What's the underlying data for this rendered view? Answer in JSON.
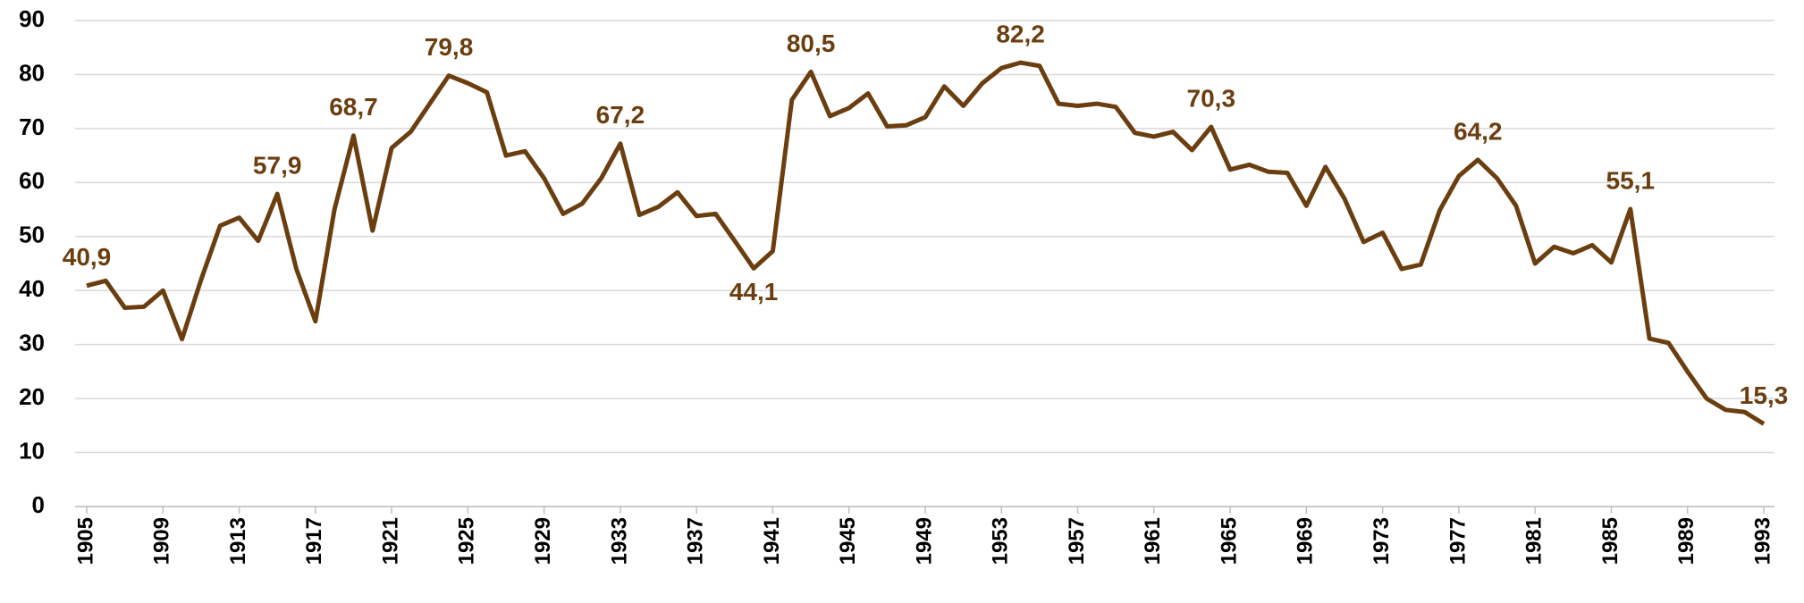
{
  "chart_data": {
    "type": "line",
    "x": [
      1905,
      1906,
      1907,
      1908,
      1909,
      1910,
      1911,
      1912,
      1913,
      1914,
      1915,
      1916,
      1917,
      1918,
      1919,
      1920,
      1921,
      1922,
      1923,
      1924,
      1925,
      1926,
      1927,
      1928,
      1929,
      1930,
      1931,
      1932,
      1933,
      1934,
      1935,
      1936,
      1937,
      1938,
      1939,
      1940,
      1941,
      1942,
      1943,
      1944,
      1945,
      1946,
      1947,
      1948,
      1949,
      1950,
      1951,
      1952,
      1953,
      1954,
      1955,
      1956,
      1957,
      1958,
      1959,
      1960,
      1961,
      1962,
      1963,
      1964,
      1965,
      1966,
      1967,
      1968,
      1969,
      1970,
      1971,
      1972,
      1973,
      1974,
      1975,
      1976,
      1977,
      1978,
      1979,
      1980,
      1981,
      1982,
      1983,
      1984,
      1985,
      1986,
      1987,
      1988,
      1989,
      1990,
      1991,
      1992,
      1993
    ],
    "series": [
      {
        "color": "#6b3e0f",
        "values": [
          40.9,
          41.8,
          36.8,
          37,
          40,
          31,
          42,
          52,
          53.5,
          49.2,
          57.9,
          44,
          34.3,
          55,
          68.7,
          51.1,
          66.4,
          69.4,
          74.6,
          79.8,
          78.4,
          76.7,
          65,
          65.8,
          60.8,
          54.2,
          56.1,
          60.8,
          67.2,
          54,
          55.5,
          58.2,
          53.8,
          54.2,
          49.2,
          44.1,
          47.3,
          75.3,
          80.5,
          72.3,
          73.8,
          76.5,
          70.4,
          70.6,
          72.1,
          77.8,
          74.2,
          78.4,
          81.2,
          82.2,
          81.6,
          74.6,
          74.2,
          74.6,
          74,
          69.2,
          68.5,
          69.4,
          66,
          70.3,
          62.4,
          63.3,
          62,
          61.8,
          55.7,
          62.9,
          57,
          49,
          50.7,
          44,
          44.8,
          54.9,
          61.2,
          64.2,
          60.8,
          55.7,
          45,
          48.1,
          46.9,
          48.4,
          45.2,
          55.1,
          31.1,
          30.3,
          25,
          20,
          17.9,
          17.5,
          15.3
        ],
        "value_labels": [
          "40,9",
          null,
          null,
          null,
          null,
          null,
          null,
          null,
          null,
          null,
          "57,9",
          null,
          null,
          null,
          "68,7",
          null,
          null,
          null,
          null,
          "79,8",
          null,
          null,
          null,
          null,
          null,
          null,
          null,
          null,
          "67,2",
          null,
          null,
          null,
          null,
          null,
          null,
          "44,1",
          null,
          null,
          "80,5",
          null,
          null,
          null,
          null,
          null,
          null,
          null,
          null,
          null,
          null,
          "82,2",
          null,
          null,
          null,
          null,
          null,
          null,
          null,
          null,
          null,
          "70,3",
          null,
          null,
          null,
          null,
          null,
          null,
          null,
          null,
          null,
          null,
          null,
          null,
          null,
          "64,2",
          null,
          null,
          null,
          null,
          null,
          null,
          null,
          "55,1",
          null,
          null,
          null,
          null,
          null,
          null,
          "15,3"
        ]
      }
    ],
    "xlim": [
      1905,
      1993
    ],
    "xticks": [
      1905,
      1909,
      1913,
      1917,
      1921,
      1925,
      1929,
      1933,
      1937,
      1941,
      1945,
      1949,
      1953,
      1957,
      1961,
      1965,
      1969,
      1973,
      1977,
      1981,
      1985,
      1989,
      1993
    ],
    "ylim": [
      0,
      90
    ],
    "yticks": [
      0,
      10,
      20,
      30,
      40,
      50,
      60,
      70,
      80,
      90
    ],
    "grid": true
  }
}
